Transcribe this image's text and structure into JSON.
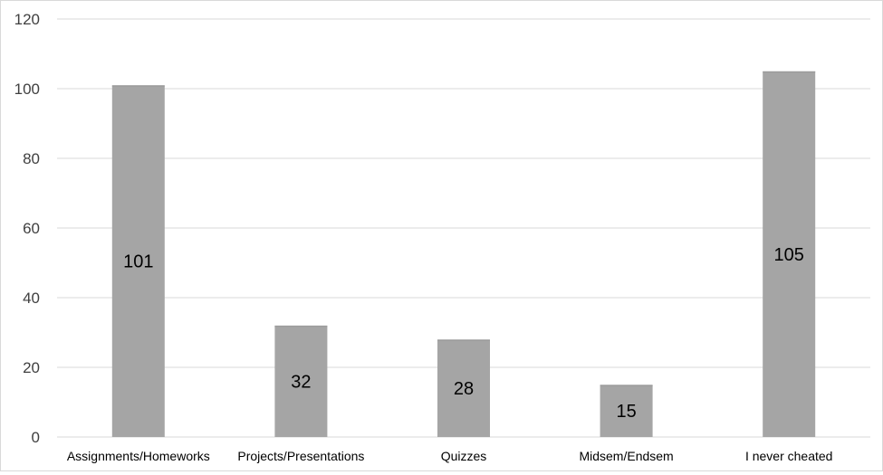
{
  "chart_data": {
    "type": "bar",
    "categories": [
      "Assignments/Homeworks",
      "Projects/Presentations",
      "Quizzes",
      "Midsem/Endsem",
      "I never cheated"
    ],
    "values": [
      101,
      32,
      28,
      15,
      105
    ],
    "title": "",
    "xlabel": "",
    "ylabel": "",
    "ylim": [
      0,
      120
    ],
    "yticks": [
      0,
      20,
      40,
      60,
      80,
      100,
      120
    ],
    "grid": true,
    "legend": "none",
    "data_labels": "center",
    "bar_color": "#a5a5a5",
    "grid_color": "#d9d9d9"
  }
}
